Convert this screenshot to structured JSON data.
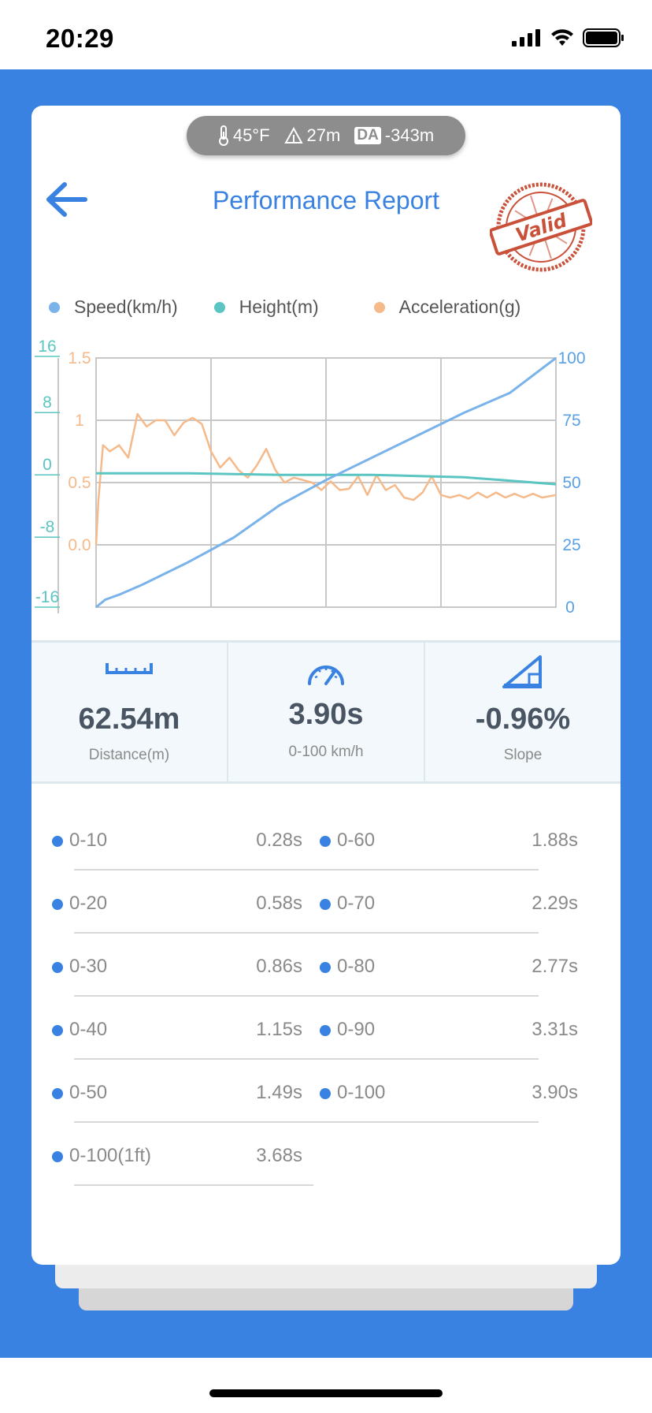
{
  "status_bar": {
    "time": "20:29"
  },
  "conditions": {
    "temperature": "45°F",
    "altitude": "27m",
    "da_badge": "DA",
    "density_altitude": "-343m"
  },
  "header": {
    "title": "Performance Report",
    "stamp_text": "Valid"
  },
  "legend": [
    {
      "label": "Speed(km/h)",
      "color": "#7ab3ea"
    },
    {
      "label": "Height(m)",
      "color": "#5ac5c2"
    },
    {
      "label": "Acceleration(g)",
      "color": "#f5b98a"
    }
  ],
  "chart_data": {
    "type": "line",
    "left_axis_height": {
      "ticks": [
        "16",
        "8",
        "0",
        "-8",
        "-16"
      ],
      "range": [
        -16,
        16
      ],
      "color": "#5ac5c2"
    },
    "left_axis_accel": {
      "ticks": [
        "1.5",
        "1",
        "0.5",
        "0.0"
      ],
      "range": [
        0,
        1.5
      ],
      "color": "#f5b98a"
    },
    "right_axis_speed": {
      "ticks": [
        "100",
        "75",
        "50",
        "25",
        "0"
      ],
      "range": [
        0,
        100
      ],
      "color": "#5aa0e6"
    },
    "series": [
      {
        "name": "Speed(km/h)",
        "color": "#7ab3ea",
        "x": [
          0,
          0.02,
          0.05,
          0.1,
          0.2,
          0.3,
          0.4,
          0.5,
          0.6,
          0.7,
          0.8,
          0.9,
          1.0
        ],
        "values": [
          0,
          3,
          5,
          9,
          18,
          28,
          41,
          51,
          60,
          69,
          78,
          86,
          100
        ]
      },
      {
        "name": "Height(m)",
        "color": "#5ac5c2",
        "x": [
          0,
          0.2,
          0.4,
          0.6,
          0.8,
          1.0
        ],
        "values": [
          0.2,
          0.2,
          0.0,
          0.0,
          -0.3,
          -1.2
        ]
      },
      {
        "name": "Acceleration(g)",
        "color": "#f5b98a",
        "x": [
          0,
          0.005,
          0.015,
          0.03,
          0.05,
          0.07,
          0.09,
          0.11,
          0.13,
          0.15,
          0.17,
          0.19,
          0.21,
          0.23,
          0.25,
          0.27,
          0.29,
          0.31,
          0.33,
          0.35,
          0.37,
          0.39,
          0.41,
          0.43,
          0.45,
          0.47,
          0.49,
          0.51,
          0.53,
          0.55,
          0.57,
          0.59,
          0.61,
          0.63,
          0.65,
          0.67,
          0.69,
          0.71,
          0.73,
          0.75,
          0.77,
          0.79,
          0.81,
          0.83,
          0.85,
          0.87,
          0.89,
          0.91,
          0.93,
          0.95,
          0.97,
          1.0
        ],
        "values": [
          0.0,
          0.35,
          0.8,
          0.75,
          0.8,
          0.7,
          1.05,
          0.95,
          1.0,
          1.0,
          0.88,
          0.98,
          1.02,
          0.97,
          0.75,
          0.62,
          0.7,
          0.6,
          0.54,
          0.64,
          0.77,
          0.6,
          0.5,
          0.54,
          0.52,
          0.5,
          0.44,
          0.51,
          0.44,
          0.45,
          0.55,
          0.4,
          0.56,
          0.44,
          0.48,
          0.38,
          0.36,
          0.42,
          0.55,
          0.4,
          0.38,
          0.4,
          0.37,
          0.42,
          0.38,
          0.42,
          0.38,
          0.41,
          0.38,
          0.41,
          0.38,
          0.4
        ]
      }
    ],
    "grid": true
  },
  "stats": [
    {
      "icon": "ruler-icon",
      "value": "62.54m",
      "label": "Distance(m)"
    },
    {
      "icon": "speedometer-icon",
      "value": "3.90s",
      "label": "0-100 km/h"
    },
    {
      "icon": "slope-icon",
      "value": "-0.96%",
      "label": "Slope"
    }
  ],
  "splits_left": [
    {
      "label": "0-10",
      "time": "0.28s"
    },
    {
      "label": "0-20",
      "time": "0.58s"
    },
    {
      "label": "0-30",
      "time": "0.86s"
    },
    {
      "label": "0-40",
      "time": "1.15s"
    },
    {
      "label": "0-50",
      "time": "1.49s"
    },
    {
      "label": "0-100(1ft)",
      "time": "3.68s"
    }
  ],
  "splits_right": [
    {
      "label": "0-60",
      "time": "1.88s"
    },
    {
      "label": "0-70",
      "time": "2.29s"
    },
    {
      "label": "0-80",
      "time": "2.77s"
    },
    {
      "label": "0-90",
      "time": "3.31s"
    },
    {
      "label": "0-100",
      "time": "3.90s"
    }
  ]
}
